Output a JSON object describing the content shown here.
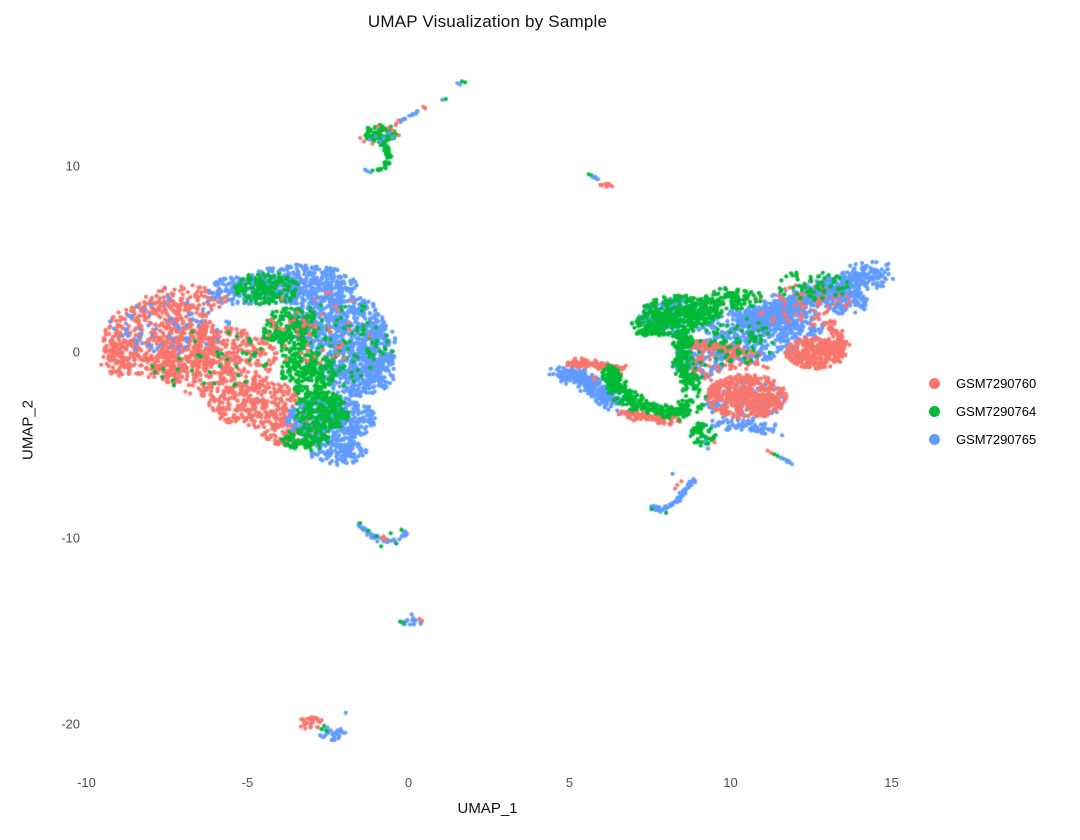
{
  "chart_data": {
    "type": "scatter",
    "title": "UMAP Visualization by Sample",
    "xlabel": "UMAP_1",
    "ylabel": "UMAP_2",
    "x_ticks": [
      -10,
      -5,
      0,
      5,
      10,
      15
    ],
    "y_ticks": [
      10,
      0,
      -10,
      -20
    ],
    "xlim": [
      -11.7,
      16.4
    ],
    "ylim": [
      -23.5,
      15.8
    ],
    "grid": false,
    "legend_position": "right",
    "point_color_by": "Sample",
    "series": [
      {
        "name": "GSM7290760",
        "color": "#F8766D"
      },
      {
        "name": "GSM7290764",
        "color": "#00BA38"
      },
      {
        "name": "GSM7290765",
        "color": "#619CFF"
      }
    ],
    "clusters_schema": "s=series index; k=g gaussian blob (c center,r radii,n points) | p path (pts polyline, j jitter, n points) | d explicit dots",
    "clusters": [
      {
        "s": 0,
        "k": "g",
        "c": [
          -7.7,
          0.7
        ],
        "r": [
          1.8,
          2.1
        ],
        "n": 560
      },
      {
        "s": 0,
        "k": "g",
        "c": [
          -6.0,
          -0.5
        ],
        "r": [
          1.9,
          1.9
        ],
        "n": 520
      },
      {
        "s": 0,
        "k": "g",
        "c": [
          -4.7,
          -2.8
        ],
        "r": [
          1.5,
          1.3
        ],
        "n": 300
      },
      {
        "s": 0,
        "k": "g",
        "c": [
          -3.6,
          -4.3
        ],
        "r": [
          1.0,
          0.8
        ],
        "n": 130
      },
      {
        "s": 0,
        "k": "g",
        "c": [
          -6.9,
          2.8
        ],
        "r": [
          1.3,
          0.8
        ],
        "n": 110
      },
      {
        "s": 0,
        "k": "g",
        "c": [
          -8.9,
          -0.3
        ],
        "r": [
          0.7,
          1.0
        ],
        "n": 80
      },
      {
        "s": 2,
        "k": "g",
        "c": [
          -3.4,
          3.6
        ],
        "r": [
          1.8,
          1.1
        ],
        "n": 460
      },
      {
        "s": 2,
        "k": "g",
        "c": [
          -5.3,
          3.3
        ],
        "r": [
          0.9,
          0.8
        ],
        "n": 110
      },
      {
        "s": 2,
        "k": "g",
        "c": [
          -2.2,
          1.5
        ],
        "r": [
          1.5,
          1.6
        ],
        "n": 520
      },
      {
        "s": 2,
        "k": "g",
        "c": [
          -1.6,
          -1.0
        ],
        "r": [
          1.2,
          1.4
        ],
        "n": 420
      },
      {
        "s": 2,
        "k": "g",
        "c": [
          -2.4,
          -3.6
        ],
        "r": [
          1.4,
          1.2
        ],
        "n": 420
      },
      {
        "s": 2,
        "k": "g",
        "c": [
          -2.2,
          -5.4
        ],
        "r": [
          0.9,
          0.7
        ],
        "n": 130
      },
      {
        "s": 2,
        "k": "g",
        "c": [
          -0.9,
          0.2
        ],
        "r": [
          0.55,
          1.3
        ],
        "n": 110
      },
      {
        "s": 2,
        "k": "g",
        "c": [
          -7.3,
          1.4
        ],
        "r": [
          2.0,
          1.6
        ],
        "n": 65
      },
      {
        "s": 1,
        "k": "g",
        "c": [
          -4.4,
          3.4
        ],
        "r": [
          1.0,
          0.9
        ],
        "n": 170
      },
      {
        "s": 1,
        "k": "g",
        "c": [
          -3.7,
          1.2
        ],
        "r": [
          0.85,
          1.2
        ],
        "n": 190
      },
      {
        "s": 1,
        "k": "g",
        "c": [
          -3.1,
          -1.1
        ],
        "r": [
          0.85,
          1.2
        ],
        "n": 210
      },
      {
        "s": 1,
        "k": "g",
        "c": [
          -2.7,
          -3.2
        ],
        "r": [
          0.9,
          1.1
        ],
        "n": 210
      },
      {
        "s": 1,
        "k": "g",
        "c": [
          -3.2,
          -4.7
        ],
        "r": [
          0.75,
          0.6
        ],
        "n": 100
      },
      {
        "s": 1,
        "k": "g",
        "c": [
          -2.2,
          0.4
        ],
        "r": [
          1.8,
          2.3
        ],
        "n": 130
      },
      {
        "s": 1,
        "k": "g",
        "c": [
          -6.2,
          -0.6
        ],
        "r": [
          1.9,
          1.8
        ],
        "n": 40
      },
      {
        "s": 0,
        "k": "g",
        "c": [
          -2.9,
          1.3
        ],
        "r": [
          1.9,
          2.0
        ],
        "n": 55
      },
      {
        "s": 2,
        "k": "p",
        "pts": [
          [
            4.85,
            -1.05
          ],
          [
            5.4,
            -1.5
          ],
          [
            6.0,
            -2.1
          ],
          [
            6.45,
            -2.85
          ]
        ],
        "j": 0.5,
        "n": 330
      },
      {
        "s": 2,
        "k": "p",
        "pts": [
          [
            10.4,
            1.6
          ],
          [
            11.6,
            2.4
          ],
          [
            12.9,
            3.2
          ],
          [
            13.9,
            3.9
          ],
          [
            14.55,
            4.35
          ]
        ],
        "j": 0.72,
        "n": 780
      },
      {
        "s": 2,
        "k": "g",
        "c": [
          13.6,
          2.7
        ],
        "r": [
          0.7,
          0.7
        ],
        "n": 110
      },
      {
        "s": 2,
        "k": "g",
        "c": [
          10.7,
          0.9
        ],
        "r": [
          1.5,
          1.5
        ],
        "n": 330
      },
      {
        "s": 2,
        "k": "g",
        "c": [
          11.9,
          1.5
        ],
        "r": [
          1.0,
          1.0
        ],
        "n": 170
      },
      {
        "s": 2,
        "k": "g",
        "c": [
          8.3,
          1.9
        ],
        "r": [
          1.2,
          1.0
        ],
        "n": 170
      },
      {
        "s": 2,
        "k": "g",
        "c": [
          10.4,
          -2.6
        ],
        "r": [
          1.3,
          1.1
        ],
        "n": 150
      },
      {
        "s": 2,
        "k": "p",
        "pts": [
          [
            9.6,
            -3.8
          ],
          [
            11.3,
            -4.2
          ]
        ],
        "j": 0.35,
        "n": 80
      },
      {
        "s": 2,
        "k": "g",
        "c": [
          9.0,
          -0.5
        ],
        "r": [
          0.8,
          1.0
        ],
        "n": 120
      },
      {
        "s": 0,
        "k": "p",
        "pts": [
          [
            5.0,
            -0.5
          ],
          [
            6.7,
            -0.95
          ]
        ],
        "j": 0.27,
        "n": 100
      },
      {
        "s": 0,
        "k": "g",
        "c": [
          10.5,
          -2.4
        ],
        "r": [
          1.25,
          1.2
        ],
        "n": 430
      },
      {
        "s": 0,
        "k": "g",
        "c": [
          12.65,
          -0.05
        ],
        "r": [
          0.95,
          0.85
        ],
        "n": 300
      },
      {
        "s": 0,
        "k": "p",
        "pts": [
          [
            13.1,
            1.6
          ],
          [
            13.5,
            0.4
          ]
        ],
        "j": 0.22,
        "n": 45
      },
      {
        "s": 0,
        "k": "p",
        "pts": [
          [
            8.4,
            0.5
          ],
          [
            10.3,
            0.1
          ]
        ],
        "j": 0.3,
        "n": 80
      },
      {
        "s": 0,
        "k": "p",
        "pts": [
          [
            6.6,
            -3.3
          ],
          [
            8.3,
            -3.7
          ]
        ],
        "j": 0.3,
        "n": 90
      },
      {
        "s": 0,
        "k": "g",
        "c": [
          12.3,
          2.5
        ],
        "r": [
          1.7,
          1.1
        ],
        "n": 70
      },
      {
        "s": 0,
        "k": "g",
        "c": [
          9.9,
          -0.7
        ],
        "r": [
          1.3,
          1.0
        ],
        "n": 90
      },
      {
        "s": 1,
        "k": "g",
        "c": [
          8.5,
          2.2
        ],
        "r": [
          1.25,
          0.85
        ],
        "n": 330
      },
      {
        "s": 1,
        "k": "g",
        "c": [
          7.6,
          1.4
        ],
        "r": [
          0.7,
          0.6
        ],
        "n": 110
      },
      {
        "s": 1,
        "k": "g",
        "c": [
          10.1,
          2.9
        ],
        "r": [
          0.9,
          0.6
        ],
        "n": 100
      },
      {
        "s": 1,
        "k": "p",
        "pts": [
          [
            6.2,
            -0.9
          ],
          [
            6.5,
            -2.0
          ],
          [
            7.2,
            -2.9
          ],
          [
            8.2,
            -3.3
          ],
          [
            8.9,
            -2.7
          ]
        ],
        "j": 0.42,
        "n": 390
      },
      {
        "s": 1,
        "k": "p",
        "pts": [
          [
            8.5,
            1.2
          ],
          [
            8.5,
            -0.5
          ],
          [
            8.8,
            -2.0
          ]
        ],
        "j": 0.4,
        "n": 190
      },
      {
        "s": 1,
        "k": "g",
        "c": [
          9.15,
          -4.4
        ],
        "r": [
          0.4,
          0.65
        ],
        "n": 70
      },
      {
        "s": 1,
        "k": "g",
        "c": [
          9.8,
          0.6
        ],
        "r": [
          1.6,
          1.4
        ],
        "n": 90
      },
      {
        "s": 1,
        "k": "g",
        "c": [
          12.6,
          3.6
        ],
        "r": [
          1.2,
          0.8
        ],
        "n": 65
      },
      {
        "s": 2,
        "k": "d",
        "pts": [
          [
            9.2,
            -4.8
          ],
          [
            9.3,
            -5.2
          ]
        ]
      },
      {
        "s": 0,
        "k": "d",
        "pts": [
          [
            9.5,
            -4.85
          ],
          [
            5.8,
            -1.5
          ],
          [
            5.75,
            -1.4
          ]
        ]
      },
      {
        "s": 1,
        "k": "g",
        "c": [
          -0.85,
          11.75
        ],
        "r": [
          0.5,
          0.55
        ],
        "n": 75
      },
      {
        "s": 1,
        "k": "p",
        "pts": [
          [
            -0.8,
            11.3
          ],
          [
            -0.6,
            10.6
          ],
          [
            -0.7,
            10.0
          ],
          [
            -1.15,
            9.65
          ]
        ],
        "j": 0.11,
        "n": 40
      },
      {
        "s": 2,
        "k": "d",
        "pts": [
          [
            -1.35,
            9.8
          ],
          [
            -1.28,
            9.72
          ],
          [
            -1.18,
            9.65
          ]
        ]
      },
      {
        "s": 0,
        "k": "d",
        "pts": [
          [
            -1.5,
            11.5
          ],
          [
            -1.38,
            11.32
          ],
          [
            -0.62,
            12.05
          ],
          [
            -0.5,
            11.9
          ],
          [
            -0.95,
            12.1
          ],
          [
            -1.12,
            11.2
          ],
          [
            -0.4,
            12.2
          ],
          [
            -0.3,
            11.65
          ]
        ]
      },
      {
        "s": 2,
        "k": "d",
        "pts": [
          [
            -1.02,
            11.6
          ],
          [
            -0.78,
            11.5
          ],
          [
            -1.2,
            11.42
          ],
          [
            -0.6,
            11.78
          ],
          [
            -0.88,
            11.3
          ],
          [
            -0.5,
            11.55
          ]
        ]
      },
      {
        "s": 2,
        "k": "p",
        "pts": [
          [
            -0.3,
            12.35
          ],
          [
            0.42,
            13.1
          ]
        ],
        "j": 0.06,
        "n": 13
      },
      {
        "s": 0,
        "k": "d",
        "pts": [
          [
            -0.38,
            12.28
          ],
          [
            -0.3,
            12.45
          ],
          [
            0.46,
            13.18
          ],
          [
            0.52,
            13.1
          ]
        ]
      },
      {
        "s": 2,
        "k": "d",
        "pts": [
          [
            1.05,
            13.55
          ],
          [
            1.52,
            14.45
          ],
          [
            1.6,
            14.38
          ]
        ]
      },
      {
        "s": 1,
        "k": "d",
        "pts": [
          [
            1.16,
            13.6
          ],
          [
            1.66,
            14.55
          ],
          [
            1.76,
            14.5
          ]
        ]
      },
      {
        "s": 1,
        "k": "d",
        "pts": [
          [
            5.6,
            9.55
          ],
          [
            5.68,
            9.5
          ]
        ]
      },
      {
        "s": 2,
        "k": "p",
        "pts": [
          [
            5.7,
            9.45
          ],
          [
            5.95,
            9.2
          ]
        ],
        "j": 0.05,
        "n": 7
      },
      {
        "s": 0,
        "k": "g",
        "c": [
          6.15,
          8.95
        ],
        "r": [
          0.2,
          0.13
        ],
        "n": 10
      },
      {
        "s": 0,
        "k": "d",
        "pts": [
          [
            11.15,
            -5.3
          ],
          [
            11.26,
            -5.42
          ]
        ]
      },
      {
        "s": 1,
        "k": "d",
        "pts": [
          [
            11.36,
            -5.5
          ],
          [
            11.46,
            -5.58
          ]
        ]
      },
      {
        "s": 2,
        "k": "p",
        "pts": [
          [
            11.52,
            -5.65
          ],
          [
            11.95,
            -6.05
          ]
        ],
        "j": 0.05,
        "n": 10
      },
      {
        "s": 2,
        "k": "p",
        "pts": [
          [
            7.5,
            -8.3
          ],
          [
            7.85,
            -8.55
          ],
          [
            8.3,
            -8.05
          ],
          [
            8.65,
            -7.3
          ],
          [
            8.85,
            -6.9
          ]
        ],
        "j": 0.12,
        "n": 60
      },
      {
        "s": 0,
        "k": "d",
        "pts": [
          [
            8.35,
            -7.15
          ],
          [
            8.48,
            -6.95
          ],
          [
            8.28,
            -7.35
          ]
        ]
      },
      {
        "s": 1,
        "k": "d",
        "pts": [
          [
            7.55,
            -8.45
          ],
          [
            8.0,
            -8.65
          ]
        ]
      },
      {
        "s": 2,
        "k": "d",
        "pts": [
          [
            8.2,
            -6.55
          ]
        ]
      },
      {
        "s": 2,
        "k": "p",
        "pts": [
          [
            -1.55,
            -9.3
          ],
          [
            -1.2,
            -9.8
          ],
          [
            -0.8,
            -10.15
          ],
          [
            -0.35,
            -10.05
          ],
          [
            -0.08,
            -9.65
          ]
        ],
        "j": 0.17,
        "n": 50
      },
      {
        "s": 1,
        "k": "d",
        "pts": [
          [
            -1.5,
            -9.2
          ],
          [
            -1.0,
            -9.9
          ],
          [
            -0.55,
            -9.75
          ],
          [
            -0.22,
            -9.55
          ],
          [
            -0.85,
            -10.45
          ],
          [
            -0.38,
            -10.3
          ],
          [
            -1.25,
            -9.6
          ]
        ]
      },
      {
        "s": 0,
        "k": "d",
        "pts": [
          [
            -0.85,
            -10.02
          ],
          [
            -0.7,
            -10.1
          ],
          [
            -0.78,
            -9.92
          ]
        ]
      },
      {
        "s": 2,
        "k": "g",
        "c": [
          0.12,
          -14.55
        ],
        "r": [
          0.32,
          0.16
        ],
        "n": 15
      },
      {
        "s": 2,
        "k": "d",
        "pts": [
          [
            0.1,
            -14.1
          ],
          [
            0.14,
            -14.3
          ]
        ]
      },
      {
        "s": 1,
        "k": "d",
        "pts": [
          [
            -0.26,
            -14.5
          ],
          [
            -0.16,
            -14.6
          ]
        ]
      },
      {
        "s": 0,
        "k": "d",
        "pts": [
          [
            0.42,
            -14.45
          ],
          [
            0.34,
            -14.35
          ]
        ]
      },
      {
        "s": 0,
        "k": "g",
        "c": [
          -3.0,
          -19.95
        ],
        "r": [
          0.42,
          0.33
        ],
        "n": 28
      },
      {
        "s": 2,
        "k": "g",
        "c": [
          -2.35,
          -20.5
        ],
        "r": [
          0.42,
          0.38
        ],
        "n": 30
      },
      {
        "s": 1,
        "k": "d",
        "pts": [
          [
            -2.62,
            -20.1
          ],
          [
            -2.54,
            -20.38
          ],
          [
            -2.7,
            -20.28
          ]
        ]
      },
      {
        "s": 2,
        "k": "d",
        "pts": [
          [
            -1.95,
            -19.4
          ]
        ]
      }
    ]
  }
}
